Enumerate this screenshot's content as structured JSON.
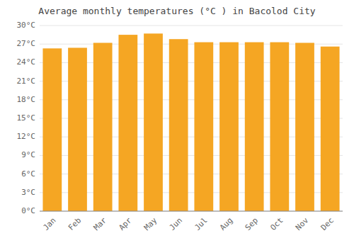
{
  "chart_data": {
    "type": "bar",
    "title": "Average monthly temperatures (°C ) in Bacolod City",
    "categories": [
      "Jan",
      "Feb",
      "Mar",
      "Apr",
      "May",
      "Jun",
      "Jul",
      "Aug",
      "Sep",
      "Oct",
      "Nov",
      "Dec"
    ],
    "values": [
      26.3,
      26.4,
      27.2,
      28.5,
      28.7,
      27.8,
      27.3,
      27.3,
      27.3,
      27.3,
      27.2,
      26.6
    ],
    "color": "#F5A623",
    "ylim": [
      0,
      30
    ],
    "yticks": [
      {
        "value": 0,
        "label": "0°C"
      },
      {
        "value": 3,
        "label": "3°C"
      },
      {
        "value": 6,
        "label": "6°C"
      },
      {
        "value": 9,
        "label": "9°C"
      },
      {
        "value": 12,
        "label": "12°C"
      },
      {
        "value": 15,
        "label": "15°C"
      },
      {
        "value": 18,
        "label": "18°C"
      },
      {
        "value": 21,
        "label": "21°C"
      },
      {
        "value": 24,
        "label": "24°C"
      },
      {
        "value": 27,
        "label": "27°C"
      },
      {
        "value": 30,
        "label": "30°C"
      }
    ],
    "grid": true
  }
}
